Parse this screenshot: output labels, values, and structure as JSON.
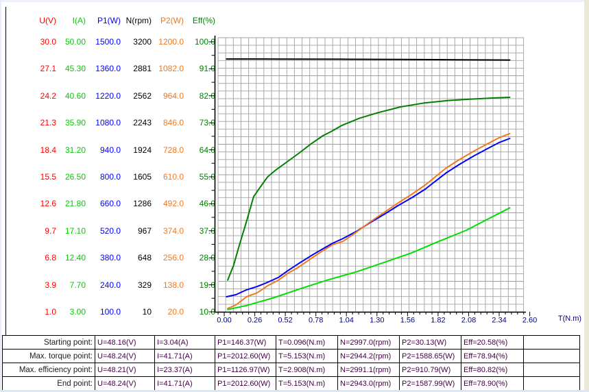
{
  "colors": {
    "grid": "#a0a0a0",
    "axis": "#000000",
    "tick_label": "#000080",
    "summary_label": "#1c1c1c",
    "summary_value": "#400040",
    "frame_beige": "#ece9d8"
  },
  "scale_table": {
    "headers": [
      {
        "label": "U(V)",
        "color": "#ff0000"
      },
      {
        "label": "I(A)",
        "color": "#00cc00"
      },
      {
        "label": "P1(W)",
        "color": "#0000ff"
      },
      {
        "label": "N(rpm)",
        "color": "#000000"
      },
      {
        "label": "P2(W)",
        "color": "#f07820"
      },
      {
        "label": "Eff(%)",
        "color": "#008000"
      }
    ],
    "rows": [
      [
        "30.0",
        "50.00",
        "1500.0",
        "3200",
        "1200.0",
        "100.0"
      ],
      [
        "27.1",
        "45.30",
        "1360.0",
        "2881",
        "1082.0",
        "91.0"
      ],
      [
        "24.2",
        "40.60",
        "1220.0",
        "2562",
        "964.0",
        "82.0"
      ],
      [
        "21.3",
        "35.90",
        "1080.0",
        "2243",
        "846.0",
        "73.0"
      ],
      [
        "18.4",
        "31.20",
        "940.0",
        "1924",
        "728.0",
        "64.0"
      ],
      [
        "15.5",
        "26.50",
        "800.0",
        "1605",
        "610.0",
        "55.0"
      ],
      [
        "12.6",
        "21.80",
        "660.0",
        "1286",
        "492.0",
        "46.0"
      ],
      [
        "9.7",
        "17.10",
        "520.0",
        "967",
        "374.0",
        "37.0"
      ],
      [
        "6.8",
        "12.40",
        "380.0",
        "648",
        "256.0",
        "28.0"
      ],
      [
        "3.9",
        "7.70",
        "240.0",
        "329",
        "138.0",
        "19.0"
      ],
      [
        "1.0",
        "3.00",
        "100.0",
        "10",
        "20.0",
        "10.0"
      ]
    ]
  },
  "chart_data": {
    "type": "line",
    "xlabel": "T(N.m)",
    "x_range": [
      0.0,
      2.6
    ],
    "x_ticks": [
      "0.00",
      "0.26",
      "0.52",
      "0.78",
      "1.04",
      "1.30",
      "1.56",
      "1.82",
      "2.08",
      "2.34",
      "2.60"
    ],
    "grid": true,
    "axes": {
      "U": {
        "label": "U(V)",
        "min": 1.0,
        "max": 30.0,
        "color": "#ff0000"
      },
      "I": {
        "label": "I(A)",
        "min": 3.0,
        "max": 50.0,
        "color": "#00dd00"
      },
      "P1": {
        "label": "P1(W)",
        "min": 100.0,
        "max": 1500.0,
        "color": "#0000ff"
      },
      "N": {
        "label": "N(rpm)",
        "min": 10,
        "max": 3200,
        "color": "#000000"
      },
      "P2": {
        "label": "P2(W)",
        "min": 20.0,
        "max": 1200.0,
        "color": "#f07820"
      },
      "Eff": {
        "label": "Eff(%)",
        "min": 10.0,
        "max": 100.0,
        "color": "#008000"
      }
    },
    "series": [
      {
        "name": "N",
        "axis": "N",
        "color": "#000000",
        "points": [
          [
            0.02,
            2997
          ],
          [
            0.5,
            2996
          ],
          [
            1.0,
            2994
          ],
          [
            1.5,
            2991
          ],
          [
            2.0,
            2988
          ],
          [
            2.43,
            2985
          ]
        ]
      },
      {
        "name": "Eff",
        "axis": "Eff",
        "color": "#008000",
        "points": [
          [
            0.03,
            20.6
          ],
          [
            0.08,
            25.5
          ],
          [
            0.13,
            32.4
          ],
          [
            0.19,
            40.2
          ],
          [
            0.25,
            48.4
          ],
          [
            0.32,
            52.3
          ],
          [
            0.37,
            55.0
          ],
          [
            0.44,
            57.3
          ],
          [
            0.56,
            60.7
          ],
          [
            0.64,
            63.0
          ],
          [
            0.74,
            66.0
          ],
          [
            0.84,
            68.7
          ],
          [
            0.91,
            70.1
          ],
          [
            1.0,
            72.1
          ],
          [
            1.15,
            74.5
          ],
          [
            1.3,
            76.3
          ],
          [
            1.5,
            78.3
          ],
          [
            1.7,
            79.6
          ],
          [
            1.9,
            80.4
          ],
          [
            2.1,
            80.9
          ],
          [
            2.3,
            81.3
          ],
          [
            2.43,
            81.5
          ]
        ]
      },
      {
        "name": "P1",
        "axis": "P1",
        "color": "#0000ff",
        "points": [
          [
            0.02,
            178
          ],
          [
            0.1,
            189
          ],
          [
            0.19,
            214
          ],
          [
            0.28,
            231
          ],
          [
            0.37,
            253
          ],
          [
            0.46,
            278
          ],
          [
            0.54,
            313
          ],
          [
            0.63,
            349
          ],
          [
            0.75,
            395
          ],
          [
            0.84,
            427
          ],
          [
            0.92,
            455
          ],
          [
            1.01,
            480
          ],
          [
            1.13,
            519
          ],
          [
            1.24,
            562
          ],
          [
            1.36,
            605
          ],
          [
            1.48,
            651
          ],
          [
            1.6,
            693
          ],
          [
            1.71,
            736
          ],
          [
            1.89,
            821
          ],
          [
            2.0,
            864
          ],
          [
            2.12,
            907
          ],
          [
            2.24,
            946
          ],
          [
            2.34,
            978
          ],
          [
            2.43,
            999
          ]
        ]
      },
      {
        "name": "P2",
        "axis": "P2",
        "color": "#f07820",
        "points": [
          [
            0.03,
            35
          ],
          [
            0.1,
            50
          ],
          [
            0.19,
            86
          ],
          [
            0.28,
            103
          ],
          [
            0.37,
            134
          ],
          [
            0.46,
            158
          ],
          [
            0.54,
            188
          ],
          [
            0.63,
            214
          ],
          [
            0.75,
            257
          ],
          [
            0.84,
            287
          ],
          [
            0.92,
            313
          ],
          [
            1.01,
            328
          ],
          [
            1.13,
            370
          ],
          [
            1.24,
            412
          ],
          [
            1.36,
            454
          ],
          [
            1.48,
            496
          ],
          [
            1.6,
            535
          ],
          [
            1.71,
            574
          ],
          [
            1.89,
            649
          ],
          [
            2.0,
            685
          ],
          [
            2.12,
            721
          ],
          [
            2.24,
            754
          ],
          [
            2.34,
            781
          ],
          [
            2.43,
            799
          ]
        ]
      },
      {
        "name": "I",
        "axis": "I",
        "color": "#00dd00",
        "points": [
          [
            0.03,
            3.4
          ],
          [
            0.19,
            4.1
          ],
          [
            0.43,
            5.5
          ],
          [
            0.66,
            7.1
          ],
          [
            0.89,
            8.6
          ],
          [
            1.13,
            10.0
          ],
          [
            1.36,
            11.6
          ],
          [
            1.6,
            13.3
          ],
          [
            1.83,
            15.3
          ],
          [
            2.06,
            17.2
          ],
          [
            2.24,
            19.1
          ],
          [
            2.43,
            21.1
          ]
        ]
      }
    ]
  },
  "summary_table": {
    "rows": [
      {
        "label": "Starting point:",
        "cells": [
          "U=48.16(V)",
          "I=3.04(A)",
          "P1=146.37(W)",
          "T=0.096(N.m)",
          "N=2997.0(rpm)",
          "P2=30.13(W)",
          "Eff=20.58(%)"
        ]
      },
      {
        "label": "Max. torque point:",
        "cells": [
          "U=48.24(V)",
          "I=41.71(A)",
          "P1=2012.60(W)",
          "T=5.153(N.m)",
          "N=2944.2(rpm)",
          "P2=1588.65(W)",
          "Eff=78.94(%)"
        ]
      },
      {
        "label": "Max. efficiency point:",
        "cells": [
          "U=48.21(V)",
          "I=23.37(A)",
          "P1=1126.97(W)",
          "T=2.908(N.m)",
          "N=2991.1(rpm)",
          "P2=910.79(W)",
          "Eff=80.82(%)"
        ]
      },
      {
        "label": "End point:",
        "cells": [
          "U=48.24(V)",
          "I=41.71(A)",
          "P1=2012.60(W)",
          "T=5.153(N.m)",
          "N=2943.0(rpm)",
          "P2=1587.99(W)",
          "Eff=78.90(%)"
        ]
      }
    ]
  }
}
